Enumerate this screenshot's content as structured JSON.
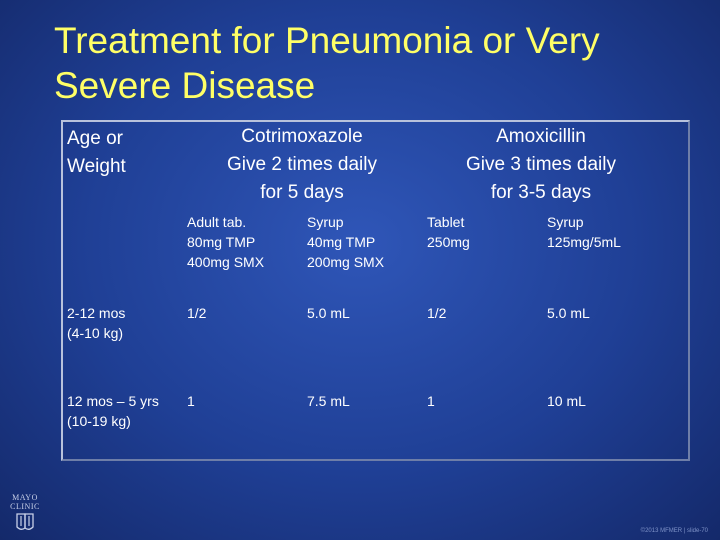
{
  "slide": {
    "title": "Treatment for Pneumonia or Very Severe Disease",
    "footer": "©2013 MFMER | slide-70"
  },
  "table": {
    "row_header_label": "Age or\nWeight",
    "drug_groups": [
      {
        "name": "Cotrimoxazole",
        "dose": "Give 2 times daily",
        "duration": "for 5 days"
      },
      {
        "name": "Amoxicillin",
        "dose": "Give 3 times daily",
        "duration": "for 3-5 days"
      }
    ],
    "forms": [
      "Adult tab.\n80mg TMP\n400mg SMX",
      "Syrup\n40mg TMP\n200mg SMX",
      "Tablet\n250mg",
      "Syrup\n125mg/5mL"
    ],
    "rows": [
      {
        "age": "2-12 mos\n(4-10 kg)",
        "values": [
          "1/2",
          "5.0 mL",
          "1/2",
          "5.0 mL"
        ]
      },
      {
        "age": "12 mos – 5 yrs\n(10-19 kg)",
        "values": [
          "1",
          "7.5 mL",
          "1",
          "10 mL"
        ]
      }
    ]
  },
  "logo": {
    "text": "MAYO\nCLINIC",
    "icon": "mayo-shield-icon"
  }
}
